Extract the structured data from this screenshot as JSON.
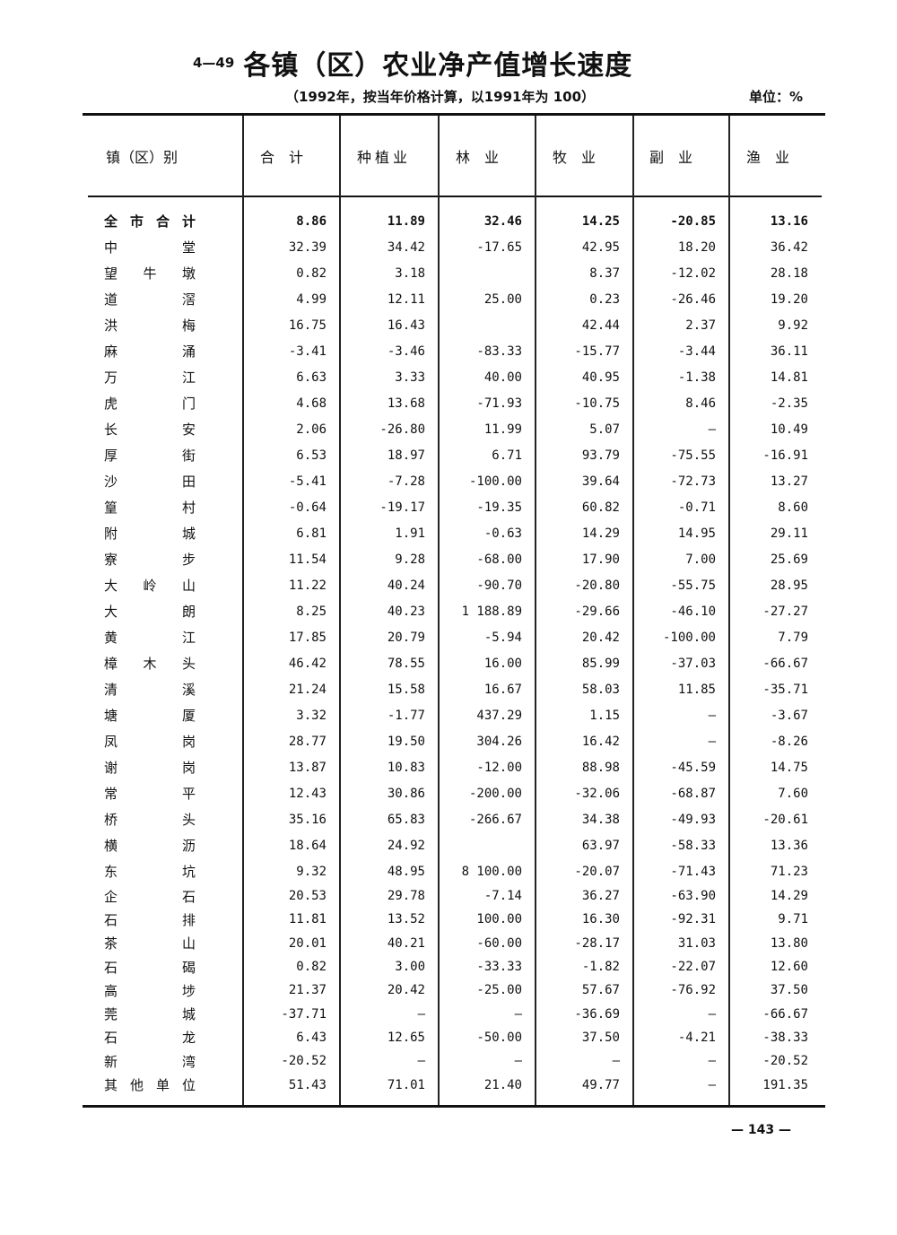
{
  "header": {
    "table_number": "4—49",
    "title": "各镇（区）农业净产值增长速度",
    "subtitle": "（1992年，按当年价格计算，以1991年为 100）",
    "unit": "单位：%"
  },
  "columns": [
    "镇（区）别",
    "合　计",
    "种植业",
    "林　业",
    "牧　业",
    "副　业",
    "渔　业"
  ],
  "rows": [
    {
      "name": "全市合计",
      "values": [
        "8.86",
        "11.89",
        "32.46",
        "14.25",
        "-20.85",
        "13.16"
      ]
    },
    {
      "name": "中堂",
      "values": [
        "32.39",
        "34.42",
        "-17.65",
        "42.95",
        "18.20",
        "36.42"
      ]
    },
    {
      "name": "望牛墩",
      "values": [
        "0.82",
        "3.18",
        "",
        "8.37",
        "-12.02",
        "28.18"
      ]
    },
    {
      "name": "道滘",
      "values": [
        "4.99",
        "12.11",
        "25.00",
        "0.23",
        "-26.46",
        "19.20"
      ]
    },
    {
      "name": "洪梅",
      "values": [
        "16.75",
        "16.43",
        "",
        "42.44",
        "2.37",
        "9.92"
      ]
    },
    {
      "name": "麻涌",
      "values": [
        "-3.41",
        "-3.46",
        "-83.33",
        "-15.77",
        "-3.44",
        "36.11"
      ]
    },
    {
      "name": "万江",
      "values": [
        "6.63",
        "3.33",
        "40.00",
        "40.95",
        "-1.38",
        "14.81"
      ]
    },
    {
      "name": "虎门",
      "values": [
        "4.68",
        "13.68",
        "-71.93",
        "-10.75",
        "8.46",
        "-2.35"
      ]
    },
    {
      "name": "长安",
      "values": [
        "2.06",
        "-26.80",
        "11.99",
        "5.07",
        "—",
        "10.49"
      ]
    },
    {
      "name": "厚街",
      "values": [
        "6.53",
        "18.97",
        "6.71",
        "93.79",
        "-75.55",
        "-16.91"
      ]
    },
    {
      "name": "沙田",
      "values": [
        "-5.41",
        "-7.28",
        "-100.00",
        "39.64",
        "-72.73",
        "13.27"
      ]
    },
    {
      "name": "篁村",
      "values": [
        "-0.64",
        "-19.17",
        "-19.35",
        "60.82",
        "-0.71",
        "8.60"
      ]
    },
    {
      "name": "附城",
      "values": [
        "6.81",
        "1.91",
        "-0.63",
        "14.29",
        "14.95",
        "29.11"
      ]
    },
    {
      "name": "寮步",
      "values": [
        "11.54",
        "9.28",
        "-68.00",
        "17.90",
        "7.00",
        "25.69"
      ]
    },
    {
      "name": "大岭山",
      "values": [
        "11.22",
        "40.24",
        "-90.70",
        "-20.80",
        "-55.75",
        "28.95"
      ]
    },
    {
      "name": "大朗",
      "values": [
        "8.25",
        "40.23",
        "1 188.89",
        "-29.66",
        "-46.10",
        "-27.27"
      ]
    },
    {
      "name": "黄江",
      "values": [
        "17.85",
        "20.79",
        "-5.94",
        "20.42",
        "-100.00",
        "7.79"
      ]
    },
    {
      "name": "樟木头",
      "values": [
        "46.42",
        "78.55",
        "16.00",
        "85.99",
        "-37.03",
        "-66.67"
      ]
    },
    {
      "name": "清溪",
      "values": [
        "21.24",
        "15.58",
        "16.67",
        "58.03",
        "11.85",
        "-35.71"
      ]
    },
    {
      "name": "塘厦",
      "values": [
        "3.32",
        "-1.77",
        "437.29",
        "1.15",
        "—",
        "-3.67"
      ]
    },
    {
      "name": "凤岗",
      "values": [
        "28.77",
        "19.50",
        "304.26",
        "16.42",
        "—",
        "-8.26"
      ]
    },
    {
      "name": "谢岗",
      "values": [
        "13.87",
        "10.83",
        "-12.00",
        "88.98",
        "-45.59",
        "14.75"
      ]
    },
    {
      "name": "常平",
      "values": [
        "12.43",
        "30.86",
        "-200.00",
        "-32.06",
        "-68.87",
        "7.60"
      ]
    },
    {
      "name": "桥头",
      "values": [
        "35.16",
        "65.83",
        "-266.67",
        "34.38",
        "-49.93",
        "-20.61"
      ]
    },
    {
      "name": "横沥",
      "values": [
        "18.64",
        "24.92",
        "",
        "63.97",
        "-58.33",
        "13.36"
      ]
    },
    {
      "name": "东坑",
      "values": [
        "9.32",
        "48.95",
        "8 100.00",
        "-20.07",
        "-71.43",
        "71.23"
      ]
    },
    {
      "name": "企石",
      "values": [
        "20.53",
        "29.78",
        "-7.14",
        "36.27",
        "-63.90",
        "14.29"
      ]
    },
    {
      "name": "石排",
      "values": [
        "11.81",
        "13.52",
        "100.00",
        "16.30",
        "-92.31",
        "9.71"
      ]
    },
    {
      "name": "茶山",
      "values": [
        "20.01",
        "40.21",
        "-60.00",
        "-28.17",
        "31.03",
        "13.80"
      ]
    },
    {
      "name": "石碣",
      "values": [
        "0.82",
        "3.00",
        "-33.33",
        "-1.82",
        "-22.07",
        "12.60"
      ]
    },
    {
      "name": "高埗",
      "values": [
        "21.37",
        "20.42",
        "-25.00",
        "57.67",
        "-76.92",
        "37.50"
      ]
    },
    {
      "name": "莞城",
      "values": [
        "-37.71",
        "—",
        "—",
        "-36.69",
        "—",
        "-66.67"
      ]
    },
    {
      "name": "石龙",
      "values": [
        "6.43",
        "12.65",
        "-50.00",
        "37.50",
        "-4.21",
        "-38.33"
      ]
    },
    {
      "name": "新湾",
      "values": [
        "-20.52",
        "—",
        "—",
        "—",
        "—",
        "-20.52"
      ]
    },
    {
      "name": "其他单位",
      "values": [
        "51.43",
        "71.01",
        "21.40",
        "49.77",
        "—",
        "191.35"
      ]
    }
  ],
  "page_number": "— 143 —"
}
